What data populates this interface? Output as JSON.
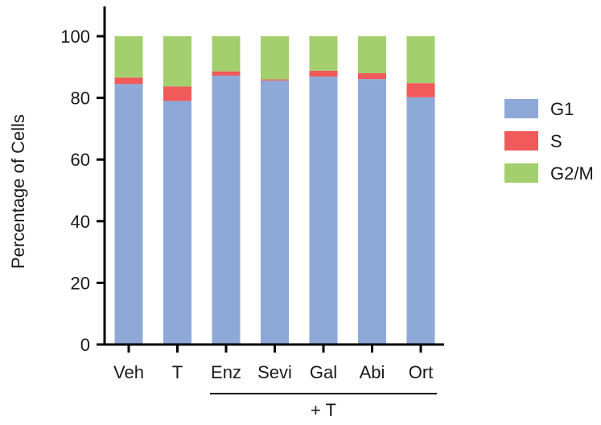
{
  "chart_data": {
    "type": "bar",
    "stacked": true,
    "title": "",
    "xlabel": "",
    "ylabel": "Percentage of Cells",
    "ylim": [
      0,
      110
    ],
    "yticks": [
      0,
      20,
      40,
      60,
      80,
      100
    ],
    "grid": false,
    "legend_position": "right",
    "categories": [
      "Veh",
      "T",
      "Enz",
      "Sevi",
      "Gal",
      "Abi",
      "Ort"
    ],
    "group_annotation": {
      "label": "+ T",
      "from": "Enz",
      "to": "Ort"
    },
    "series": [
      {
        "name": "G1",
        "color": "#8ea9d8",
        "values": [
          84.5,
          79.0,
          87.2,
          85.6,
          86.9,
          86.1,
          80.2
        ]
      },
      {
        "name": "S",
        "color": "#f05a5a",
        "values": [
          2.1,
          4.7,
          1.4,
          0.4,
          1.9,
          1.9,
          4.6
        ]
      },
      {
        "name": "G2/M",
        "color": "#a3cf6e",
        "values": [
          13.4,
          16.3,
          11.4,
          14.0,
          11.2,
          12.0,
          15.2
        ]
      }
    ]
  }
}
